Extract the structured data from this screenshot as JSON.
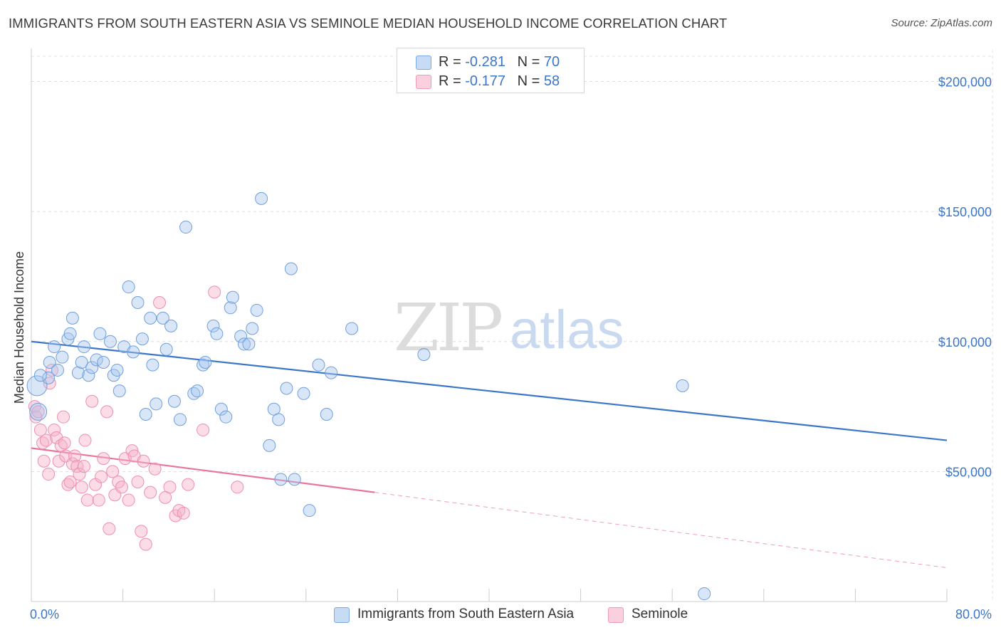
{
  "title": "IMMIGRANTS FROM SOUTH EASTERN ASIA VS SEMINOLE MEDIAN HOUSEHOLD INCOME CORRELATION CHART",
  "source": "Source: ZipAtlas.com",
  "watermark": {
    "zip": "ZIP",
    "atlas": "atlas"
  },
  "legend": {
    "rows": [
      {
        "r_label": "R = ",
        "r_value": "-0.281",
        "n_label": "N = ",
        "n_value": "70",
        "color": "#a9c8f0"
      },
      {
        "r_label": "R = ",
        "r_value": "-0.177",
        "n_label": "N = ",
        "n_value": "58",
        "color": "#f7bdd0"
      }
    ]
  },
  "bottom_legend": {
    "series1": "Immigrants from South Eastern Asia",
    "series2": "Seminole"
  },
  "chart_data": {
    "type": "scatter",
    "title": "IMMIGRANTS FROM SOUTH EASTERN ASIA VS SEMINOLE MEDIAN HOUSEHOLD INCOME CORRELATION CHART",
    "xlabel": "",
    "ylabel": "Median Household Income",
    "xlim": [
      0,
      80
    ],
    "ylim": [
      0,
      210000
    ],
    "x_tick_labels": [
      "0.0%",
      "80.0%"
    ],
    "y_ticks": [
      50000,
      100000,
      150000,
      200000
    ],
    "y_tick_labels": [
      "$50,000",
      "$100,000",
      "$150,000",
      "$200,000"
    ],
    "grid": true,
    "legend_position": "top-center",
    "colors": {
      "series1": "#3b76c9",
      "series2": "#e8759c"
    },
    "series": [
      {
        "name": "Immigrants from South Eastern Asia",
        "color": "#3b76c9",
        "trend": {
          "x": [
            0,
            80
          ],
          "y": [
            100000,
            62000
          ]
        },
        "points": [
          [
            0.5,
            83000
          ],
          [
            0.6,
            73000
          ],
          [
            1.5,
            86000
          ],
          [
            1.6,
            92000
          ],
          [
            2.0,
            98000
          ],
          [
            2.3,
            89000
          ],
          [
            2.7,
            94000
          ],
          [
            3.2,
            101000
          ],
          [
            3.4,
            103000
          ],
          [
            3.6,
            109000
          ],
          [
            4.1,
            88000
          ],
          [
            4.4,
            92000
          ],
          [
            4.6,
            98000
          ],
          [
            5.0,
            87000
          ],
          [
            5.3,
            90000
          ],
          [
            5.7,
            93000
          ],
          [
            6.0,
            103000
          ],
          [
            6.3,
            92000
          ],
          [
            6.9,
            100000
          ],
          [
            7.2,
            87000
          ],
          [
            7.5,
            89000
          ],
          [
            7.7,
            81000
          ],
          [
            8.1,
            98000
          ],
          [
            8.5,
            121000
          ],
          [
            8.9,
            96000
          ],
          [
            9.3,
            115000
          ],
          [
            9.7,
            101000
          ],
          [
            10.0,
            72000
          ],
          [
            10.4,
            109000
          ],
          [
            10.6,
            91000
          ],
          [
            10.9,
            76000
          ],
          [
            11.5,
            109000
          ],
          [
            11.8,
            97000
          ],
          [
            12.2,
            106000
          ],
          [
            12.5,
            77000
          ],
          [
            13.0,
            70000
          ],
          [
            13.5,
            144000
          ],
          [
            14.2,
            80000
          ],
          [
            14.5,
            81000
          ],
          [
            15.0,
            91000
          ],
          [
            15.2,
            92000
          ],
          [
            15.9,
            106000
          ],
          [
            16.2,
            103000
          ],
          [
            16.6,
            74000
          ],
          [
            17.0,
            71000
          ],
          [
            17.4,
            113000
          ],
          [
            17.6,
            117000
          ],
          [
            18.3,
            102000
          ],
          [
            18.6,
            99000
          ],
          [
            19.0,
            99000
          ],
          [
            19.3,
            105000
          ],
          [
            19.7,
            112000
          ],
          [
            20.1,
            155000
          ],
          [
            20.8,
            60000
          ],
          [
            21.2,
            74000
          ],
          [
            21.6,
            70000
          ],
          [
            21.8,
            47000
          ],
          [
            22.3,
            82000
          ],
          [
            22.7,
            128000
          ],
          [
            23.0,
            47000
          ],
          [
            23.8,
            80000
          ],
          [
            24.3,
            35000
          ],
          [
            25.1,
            91000
          ],
          [
            25.8,
            72000
          ],
          [
            26.2,
            88000
          ],
          [
            28.0,
            105000
          ],
          [
            34.3,
            95000
          ],
          [
            56.9,
            83000
          ],
          [
            58.8,
            3000
          ],
          [
            0.8,
            87000
          ]
        ]
      },
      {
        "name": "Seminole",
        "color": "#e8759c",
        "trend": {
          "x": [
            0,
            30
          ],
          "y": [
            59000,
            42000
          ]
        },
        "trend_extended": {
          "x": [
            30,
            80
          ],
          "y": [
            42000,
            13000
          ]
        },
        "points": [
          [
            0.3,
            75000
          ],
          [
            0.4,
            71000
          ],
          [
            0.6,
            73000
          ],
          [
            0.8,
            66000
          ],
          [
            1.0,
            61000
          ],
          [
            1.1,
            54000
          ],
          [
            1.3,
            62000
          ],
          [
            1.5,
            49000
          ],
          [
            1.6,
            84000
          ],
          [
            1.8,
            89000
          ],
          [
            2.0,
            66000
          ],
          [
            2.2,
            63000
          ],
          [
            2.4,
            54000
          ],
          [
            2.6,
            60000
          ],
          [
            2.8,
            71000
          ],
          [
            3.0,
            56000
          ],
          [
            3.2,
            45000
          ],
          [
            3.4,
            46000
          ],
          [
            3.6,
            53000
          ],
          [
            3.8,
            56000
          ],
          [
            4.0,
            52000
          ],
          [
            4.2,
            49000
          ],
          [
            4.4,
            44000
          ],
          [
            4.6,
            52000
          ],
          [
            4.9,
            39000
          ],
          [
            5.3,
            77000
          ],
          [
            5.6,
            45000
          ],
          [
            5.9,
            39000
          ],
          [
            6.3,
            55000
          ],
          [
            6.6,
            73000
          ],
          [
            6.8,
            28000
          ],
          [
            7.1,
            50000
          ],
          [
            7.3,
            41000
          ],
          [
            7.6,
            46000
          ],
          [
            7.9,
            44000
          ],
          [
            8.2,
            55000
          ],
          [
            8.5,
            39000
          ],
          [
            8.8,
            58000
          ],
          [
            9.0,
            56000
          ],
          [
            9.3,
            46000
          ],
          [
            9.6,
            27000
          ],
          [
            10.0,
            22000
          ],
          [
            10.4,
            42000
          ],
          [
            10.8,
            51000
          ],
          [
            11.2,
            115000
          ],
          [
            11.7,
            40000
          ],
          [
            12.1,
            44000
          ],
          [
            12.6,
            33000
          ],
          [
            12.9,
            35000
          ],
          [
            13.3,
            34000
          ],
          [
            13.7,
            45000
          ],
          [
            15.0,
            66000
          ],
          [
            16.0,
            119000
          ],
          [
            2.9,
            61000
          ],
          [
            4.7,
            62000
          ],
          [
            9.8,
            54000
          ],
          [
            18.0,
            44000
          ],
          [
            6.1,
            48000
          ]
        ]
      }
    ]
  }
}
